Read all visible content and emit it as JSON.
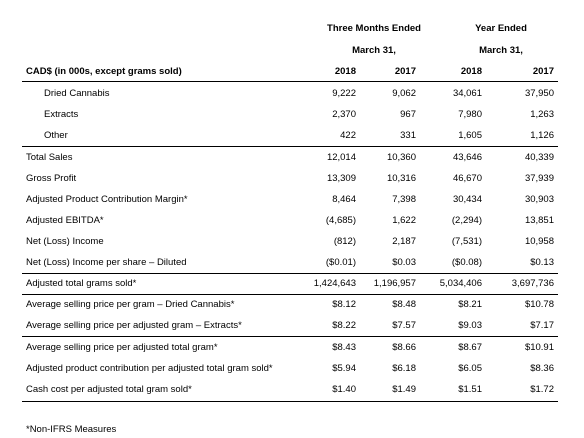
{
  "header": {
    "group1_line1": "Three Months Ended",
    "group1_line2": "March 31,",
    "group2_line1": "Year Ended",
    "group2_line2": "March 31,",
    "label_col": "CAD$ (in 000s, except grams sold)",
    "years": [
      "2018",
      "2017",
      "2018",
      "2017"
    ]
  },
  "rows": [
    {
      "label": "Dried Cannabis",
      "values": [
        "9,222",
        "9,062",
        "34,061",
        "37,950"
      ]
    },
    {
      "label": "Extracts",
      "values": [
        "2,370",
        "967",
        "7,980",
        "1,263"
      ]
    },
    {
      "label": "Other",
      "values": [
        "422",
        "331",
        "1,605",
        "1,126"
      ]
    },
    {
      "label": "Total Sales",
      "values": [
        "12,014",
        "10,360",
        "43,646",
        "40,339"
      ]
    },
    {
      "label": "Gross Profit",
      "values": [
        "13,309",
        "10,316",
        "46,670",
        "37,939"
      ]
    },
    {
      "label": "Adjusted Product Contribution Margin*",
      "values": [
        "8,464",
        "7,398",
        "30,434",
        "30,903"
      ]
    },
    {
      "label": "Adjusted EBITDA*",
      "values": [
        "(4,685)",
        "1,622",
        "(2,294)",
        "13,851"
      ]
    },
    {
      "label": "Net (Loss) Income",
      "values": [
        "(812)",
        "2,187",
        "(7,531)",
        "10,958"
      ]
    },
    {
      "label": "Net (Loss) Income per share – Diluted",
      "values": [
        "($0.01)",
        "$0.03",
        "($0.08)",
        "$0.13"
      ]
    },
    {
      "label": "Adjusted total grams sold*",
      "values": [
        "1,424,643",
        "1,196,957",
        "5,034,406",
        "3,697,736"
      ]
    },
    {
      "label": "Average selling price per gram – Dried Cannabis*",
      "values": [
        "$8.12",
        "$8.48",
        "$8.21",
        "$10.78"
      ]
    },
    {
      "label": "Average selling price per adjusted gram – Extracts*",
      "values": [
        "$8.22",
        "$7.57",
        "$9.03",
        "$7.17"
      ]
    },
    {
      "label": "Average selling price per adjusted total gram*",
      "values": [
        "$8.43",
        "$8.66",
        "$8.67",
        "$10.91"
      ]
    },
    {
      "label": "Adjusted product contribution per adjusted total gram sold*",
      "values": [
        "$5.94",
        "$6.18",
        "$6.05",
        "$8.36"
      ]
    },
    {
      "label": "Cash cost per adjusted total gram sold*",
      "values": [
        "$1.40",
        "$1.49",
        "$1.51",
        "$1.72"
      ]
    }
  ],
  "footnote": "*Non-IFRS Measures"
}
